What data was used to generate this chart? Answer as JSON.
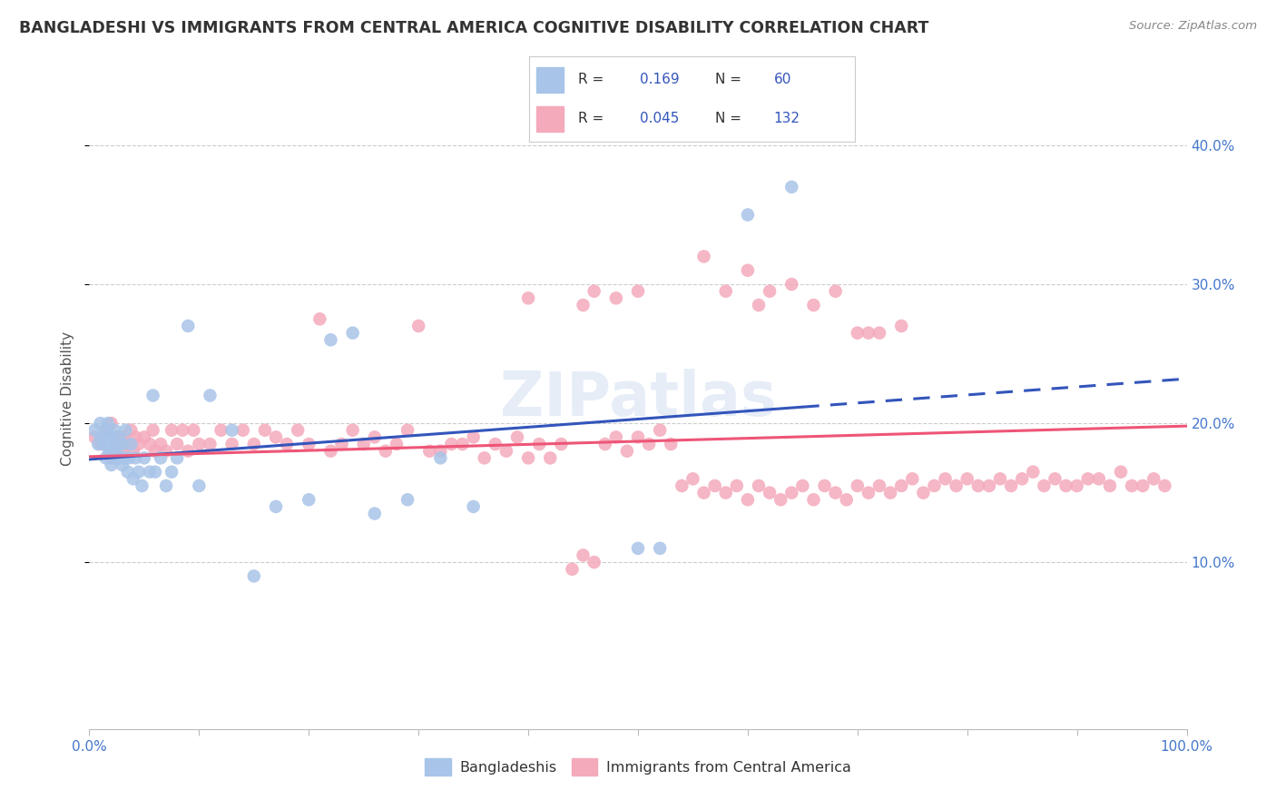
{
  "title": "BANGLADESHI VS IMMIGRANTS FROM CENTRAL AMERICA COGNITIVE DISABILITY CORRELATION CHART",
  "source": "Source: ZipAtlas.com",
  "ylabel": "Cognitive Disability",
  "xlim": [
    0.0,
    1.0
  ],
  "ylim": [
    -0.02,
    0.455
  ],
  "ytick_vals": [
    0.1,
    0.2,
    0.3,
    0.4
  ],
  "ytick_labels": [
    "10.0%",
    "20.0%",
    "30.0%",
    "40.0%"
  ],
  "blue_R": 0.169,
  "blue_N": 60,
  "pink_R": 0.045,
  "pink_N": 132,
  "blue_color": "#A8C4E8",
  "pink_color": "#F4AABB",
  "blue_line_color": "#3355BB",
  "pink_line_color": "#EE5577",
  "watermark": "ZIPatlas",
  "legend_label_blue": "Bangladeshis",
  "legend_label_pink": "Immigrants from Central America",
  "blue_line_solid_end": 0.65,
  "blue_line_start_y": 0.174,
  "blue_line_end_y": 0.232,
  "pink_line_start_y": 0.176,
  "pink_line_end_y": 0.198,
  "blue_x": [
    0.005,
    0.008,
    0.01,
    0.01,
    0.012,
    0.013,
    0.015,
    0.015,
    0.016,
    0.017,
    0.018,
    0.018,
    0.02,
    0.02,
    0.02,
    0.021,
    0.022,
    0.022,
    0.023,
    0.024,
    0.025,
    0.026,
    0.027,
    0.028,
    0.03,
    0.03,
    0.032,
    0.033,
    0.035,
    0.036,
    0.038,
    0.04,
    0.042,
    0.045,
    0.048,
    0.05,
    0.055,
    0.058,
    0.06,
    0.065,
    0.07,
    0.075,
    0.08,
    0.09,
    0.1,
    0.11,
    0.13,
    0.15,
    0.17,
    0.2,
    0.22,
    0.24,
    0.26,
    0.29,
    0.32,
    0.35,
    0.5,
    0.52,
    0.6,
    0.64
  ],
  "blue_y": [
    0.195,
    0.185,
    0.19,
    0.2,
    0.19,
    0.185,
    0.175,
    0.185,
    0.195,
    0.2,
    0.18,
    0.19,
    0.17,
    0.18,
    0.19,
    0.185,
    0.175,
    0.185,
    0.195,
    0.18,
    0.175,
    0.185,
    0.19,
    0.175,
    0.17,
    0.185,
    0.175,
    0.195,
    0.165,
    0.175,
    0.185,
    0.16,
    0.175,
    0.165,
    0.155,
    0.175,
    0.165,
    0.22,
    0.165,
    0.175,
    0.155,
    0.165,
    0.175,
    0.27,
    0.155,
    0.22,
    0.195,
    0.09,
    0.14,
    0.145,
    0.26,
    0.265,
    0.135,
    0.145,
    0.175,
    0.14,
    0.11,
    0.11,
    0.35,
    0.37
  ],
  "pink_x": [
    0.005,
    0.01,
    0.015,
    0.02,
    0.02,
    0.025,
    0.025,
    0.028,
    0.03,
    0.032,
    0.035,
    0.038,
    0.04,
    0.042,
    0.045,
    0.05,
    0.055,
    0.058,
    0.06,
    0.065,
    0.07,
    0.075,
    0.08,
    0.085,
    0.09,
    0.095,
    0.1,
    0.11,
    0.12,
    0.13,
    0.14,
    0.15,
    0.16,
    0.17,
    0.18,
    0.19,
    0.2,
    0.21,
    0.22,
    0.23,
    0.24,
    0.25,
    0.26,
    0.27,
    0.28,
    0.29,
    0.3,
    0.31,
    0.32,
    0.33,
    0.34,
    0.35,
    0.36,
    0.37,
    0.38,
    0.39,
    0.4,
    0.41,
    0.42,
    0.43,
    0.44,
    0.45,
    0.46,
    0.47,
    0.48,
    0.49,
    0.5,
    0.51,
    0.52,
    0.53,
    0.54,
    0.55,
    0.56,
    0.57,
    0.58,
    0.59,
    0.6,
    0.61,
    0.62,
    0.63,
    0.64,
    0.65,
    0.66,
    0.67,
    0.68,
    0.69,
    0.7,
    0.71,
    0.72,
    0.73,
    0.74,
    0.75,
    0.76,
    0.77,
    0.78,
    0.79,
    0.8,
    0.81,
    0.82,
    0.83,
    0.84,
    0.85,
    0.86,
    0.87,
    0.88,
    0.89,
    0.9,
    0.91,
    0.92,
    0.93,
    0.94,
    0.95,
    0.96,
    0.97,
    0.98,
    0.4,
    0.45,
    0.46,
    0.48,
    0.5,
    0.56,
    0.58,
    0.6,
    0.61,
    0.62,
    0.64,
    0.66,
    0.68,
    0.7,
    0.71,
    0.72,
    0.74
  ],
  "pink_y": [
    0.19,
    0.185,
    0.195,
    0.175,
    0.2,
    0.19,
    0.185,
    0.19,
    0.18,
    0.19,
    0.185,
    0.195,
    0.18,
    0.19,
    0.185,
    0.19,
    0.185,
    0.195,
    0.18,
    0.185,
    0.18,
    0.195,
    0.185,
    0.195,
    0.18,
    0.195,
    0.185,
    0.185,
    0.195,
    0.185,
    0.195,
    0.185,
    0.195,
    0.19,
    0.185,
    0.195,
    0.185,
    0.275,
    0.18,
    0.185,
    0.195,
    0.185,
    0.19,
    0.18,
    0.185,
    0.195,
    0.27,
    0.18,
    0.18,
    0.185,
    0.185,
    0.19,
    0.175,
    0.185,
    0.18,
    0.19,
    0.175,
    0.185,
    0.175,
    0.185,
    0.095,
    0.105,
    0.1,
    0.185,
    0.19,
    0.18,
    0.19,
    0.185,
    0.195,
    0.185,
    0.155,
    0.16,
    0.15,
    0.155,
    0.15,
    0.155,
    0.145,
    0.155,
    0.15,
    0.145,
    0.15,
    0.155,
    0.145,
    0.155,
    0.15,
    0.145,
    0.155,
    0.15,
    0.155,
    0.15,
    0.155,
    0.16,
    0.15,
    0.155,
    0.16,
    0.155,
    0.16,
    0.155,
    0.155,
    0.16,
    0.155,
    0.16,
    0.165,
    0.155,
    0.16,
    0.155,
    0.155,
    0.16,
    0.16,
    0.155,
    0.165,
    0.155,
    0.155,
    0.16,
    0.155,
    0.29,
    0.285,
    0.295,
    0.29,
    0.295,
    0.32,
    0.295,
    0.31,
    0.285,
    0.295,
    0.3,
    0.285,
    0.295,
    0.265,
    0.265,
    0.265,
    0.27
  ]
}
